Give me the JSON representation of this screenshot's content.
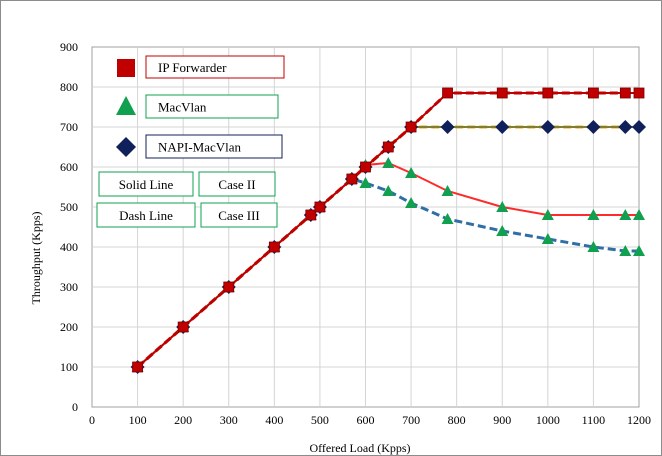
{
  "chart_data": {
    "type": "line",
    "xlabel": "Offered Load (Kpps)",
    "ylabel": "Throughput (Kpps)",
    "xlim": [
      0,
      1200
    ],
    "ylim": [
      0,
      900
    ],
    "x_ticks": [
      0,
      100,
      200,
      300,
      400,
      500,
      600,
      700,
      800,
      900,
      1000,
      1100,
      1200
    ],
    "y_ticks": [
      0,
      100,
      200,
      300,
      400,
      500,
      600,
      700,
      800,
      900
    ],
    "grid": true,
    "legend": {
      "placement": "top-left"
    },
    "series": [
      {
        "name": "IP Forwarder",
        "marker": "square",
        "color": "#c00000",
        "style": "solid",
        "x": [
          100,
          200,
          300,
          400,
          480,
          500,
          570,
          600,
          650,
          700,
          780,
          900,
          1000,
          1100,
          1170,
          1200
        ],
        "y": [
          100,
          200,
          300,
          400,
          480,
          500,
          570,
          600,
          650,
          700,
          785,
          785,
          785,
          785,
          785,
          785
        ]
      },
      {
        "name": "IP Forwarder",
        "marker": "square",
        "color": "#c00000",
        "style": "dash",
        "x": [
          100,
          200,
          300,
          400,
          480,
          500,
          570,
          600,
          650,
          700,
          780,
          900,
          1000,
          1100,
          1170,
          1200
        ],
        "y": [
          100,
          200,
          300,
          400,
          480,
          500,
          570,
          600,
          650,
          700,
          785,
          785,
          785,
          785,
          785,
          785
        ]
      },
      {
        "name": "MacVlan",
        "marker": "triangle",
        "color": "#ff2a2a",
        "style": "solid",
        "x": [
          100,
          200,
          300,
          400,
          480,
          500,
          570,
          600,
          650,
          700,
          780,
          900,
          1000,
          1100,
          1170,
          1200
        ],
        "y": [
          100,
          200,
          300,
          400,
          480,
          500,
          570,
          605,
          610,
          585,
          540,
          500,
          480,
          480,
          480,
          480
        ]
      },
      {
        "name": "MacVlan",
        "marker": "triangle",
        "color": "#2f6fa6",
        "style": "dash",
        "x": [
          100,
          200,
          300,
          400,
          480,
          500,
          570,
          600,
          650,
          700,
          780,
          900,
          1000,
          1100,
          1170,
          1200
        ],
        "y": [
          100,
          200,
          300,
          400,
          480,
          500,
          570,
          560,
          540,
          510,
          470,
          440,
          420,
          400,
          390,
          390
        ]
      },
      {
        "name": "NAPI-MacVlan",
        "marker": "diamond",
        "color": "#7f7f2f",
        "style": "solid",
        "x": [
          100,
          200,
          300,
          400,
          480,
          500,
          570,
          600,
          650,
          700,
          780,
          900,
          1000,
          1100,
          1170,
          1200
        ],
        "y": [
          100,
          200,
          300,
          400,
          480,
          500,
          570,
          600,
          650,
          700,
          700,
          700,
          700,
          700,
          700,
          700
        ]
      },
      {
        "name": "NAPI-MacVlan",
        "marker": "diamond",
        "color": "#f0a020",
        "style": "dash",
        "x": [
          100,
          200,
          300,
          400,
          480,
          500,
          570,
          600,
          650,
          700,
          780,
          900,
          1000,
          1100,
          1170,
          1200
        ],
        "y": [
          100,
          200,
          300,
          400,
          480,
          500,
          570,
          600,
          650,
          700,
          700,
          700,
          700,
          700,
          700,
          700
        ]
      }
    ],
    "legend_entries": [
      {
        "label": "IP Forwarder",
        "marker": "square",
        "marker_color": "#c00000",
        "border_color": "#c00000"
      },
      {
        "label": "MacVlan",
        "marker": "triangle",
        "marker_color": "#10a050",
        "border_color": "#10a050"
      },
      {
        "label": "NAPI-MacVlan",
        "marker": "diamond",
        "marker_color": "#10205a",
        "border_color": "#10205a"
      }
    ],
    "annotations": [
      {
        "label": "Solid Line",
        "border_color": "#10a050"
      },
      {
        "label": "Case II",
        "border_color": "#10a050"
      },
      {
        "label": "Dash Line",
        "border_color": "#10a050"
      },
      {
        "label": "Case III",
        "border_color": "#10a050"
      }
    ]
  }
}
